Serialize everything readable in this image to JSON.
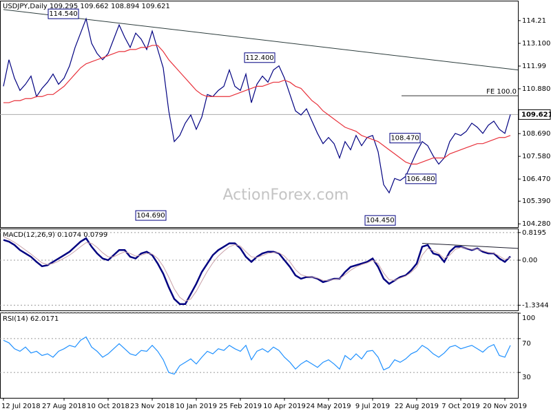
{
  "chart_data": [
    {
      "type": "line",
      "title": "USDJPY,Daily  109.295 109.662 108.894 109.621",
      "watermark": "ActionForex.com",
      "series": [
        {
          "color": "#000080",
          "values": [
            111.0,
            112.3,
            111.4,
            110.8,
            111.1,
            111.5,
            110.5,
            110.9,
            111.2,
            111.6,
            111.1,
            111.4,
            112.0,
            112.9,
            113.6,
            114.3,
            113.1,
            112.6,
            112.3,
            112.6,
            113.3,
            114.0,
            113.4,
            112.9,
            113.6,
            113.3,
            112.8,
            113.7,
            112.8,
            111.9,
            109.8,
            108.3,
            108.6,
            109.2,
            109.6,
            108.9,
            109.5,
            110.6,
            110.5,
            110.8,
            111.0,
            111.8,
            111.0,
            110.8,
            111.6,
            110.2,
            111.1,
            111.5,
            111.2,
            111.8,
            112.0,
            111.4,
            110.6,
            109.8,
            109.6,
            109.9,
            109.3,
            108.7,
            108.2,
            108.5,
            108.2,
            107.5,
            108.3,
            107.9,
            108.6,
            108.1,
            108.5,
            108.6,
            107.8,
            106.2,
            105.8,
            106.5,
            106.4,
            106.6,
            107.2,
            107.8,
            108.3,
            108.1,
            107.6,
            107.2,
            107.5,
            108.3,
            108.7,
            108.6,
            108.8,
            109.2,
            109.0,
            108.7,
            109.1,
            109.3,
            108.9,
            108.7,
            109.621
          ]
        },
        {
          "color": "#e8303a",
          "values": [
            110.2,
            110.2,
            110.3,
            110.3,
            110.4,
            110.4,
            110.5,
            110.5,
            110.6,
            110.6,
            110.8,
            111.0,
            111.3,
            111.6,
            111.9,
            112.1,
            112.2,
            112.3,
            112.4,
            112.5,
            112.6,
            112.7,
            112.7,
            112.8,
            112.8,
            112.9,
            112.9,
            113.0,
            113.0,
            112.7,
            112.3,
            112.0,
            111.7,
            111.4,
            111.1,
            110.8,
            110.6,
            110.5,
            110.5,
            110.5,
            110.5,
            110.5,
            110.6,
            110.7,
            110.8,
            110.9,
            111.0,
            111.0,
            111.1,
            111.2,
            111.2,
            111.3,
            111.2,
            111.0,
            110.9,
            110.6,
            110.3,
            110.1,
            109.8,
            109.6,
            109.4,
            109.2,
            109.0,
            108.9,
            108.8,
            108.6,
            108.5,
            108.4,
            108.3,
            108.1,
            107.9,
            107.7,
            107.5,
            107.3,
            107.2,
            107.2,
            107.3,
            107.4,
            107.5,
            107.5,
            107.5,
            107.7,
            107.8,
            107.9,
            108.0,
            108.1,
            108.2,
            108.2,
            108.3,
            108.4,
            108.5,
            108.5,
            108.6
          ]
        }
      ],
      "ylim": [
        104.12,
        115.15
      ],
      "yticks": [
        114.21,
        {
          "value": 113.1,
          "label": "113.100"
        },
        111.99,
        {
          "value": 110.88,
          "label": "110.880"
        },
        {
          "value": 108.69,
          "label": "108.690"
        },
        {
          "value": 107.58,
          "label": "107.580"
        },
        {
          "value": 106.47,
          "label": "106.470"
        },
        {
          "value": 105.39,
          "label": "105.390"
        },
        {
          "value": 104.28,
          "label": "104.280"
        }
      ],
      "last_price": 109.621,
      "trendline": [
        114.75,
        111.8
      ],
      "fe_level": {
        "value": 110.54,
        "label": "FE 100.0"
      },
      "annotations": [
        {
          "value": 114.54,
          "label": "114.540"
        },
        {
          "value": 112.4,
          "label": "112.400"
        },
        {
          "value": 104.69,
          "label": "104.690"
        },
        {
          "value": 108.47,
          "label": "108.470"
        },
        {
          "value": 106.48,
          "label": "106.480"
        },
        {
          "value": 104.45,
          "label": "104.450"
        }
      ]
    },
    {
      "type": "line",
      "title": "MACD(12,26,9) 0.1074 0.0799",
      "grid": true,
      "series": [
        {
          "color": "#000080",
          "values": [
            0.6,
            0.55,
            0.45,
            0.3,
            0.2,
            0.1,
            -0.05,
            -0.18,
            -0.15,
            -0.05,
            0.05,
            0.15,
            0.25,
            0.4,
            0.55,
            0.65,
            0.4,
            0.2,
            0.05,
            0.0,
            0.15,
            0.3,
            0.3,
            0.1,
            0.05,
            0.2,
            0.25,
            0.15,
            -0.1,
            -0.4,
            -0.8,
            -1.15,
            -1.3,
            -1.3,
            -1.0,
            -0.7,
            -0.35,
            -0.1,
            0.15,
            0.3,
            0.4,
            0.5,
            0.5,
            0.35,
            0.1,
            -0.05,
            0.1,
            0.2,
            0.25,
            0.25,
            0.2,
            0.0,
            -0.2,
            -0.45,
            -0.55,
            -0.5,
            -0.5,
            -0.55,
            -0.65,
            -0.6,
            -0.55,
            -0.55,
            -0.35,
            -0.2,
            -0.15,
            -0.1,
            -0.05,
            0.05,
            -0.2,
            -0.55,
            -0.7,
            -0.6,
            -0.5,
            -0.45,
            -0.3,
            -0.1,
            0.4,
            0.45,
            0.2,
            0.15,
            -0.05,
            0.25,
            0.4,
            0.4,
            0.35,
            0.3,
            0.35,
            0.25,
            0.2,
            0.2,
            0.05,
            -0.05,
            0.11
          ]
        },
        {
          "color": "#c8a0a8",
          "values": [
            0.7,
            0.62,
            0.53,
            0.42,
            0.3,
            0.18,
            0.05,
            -0.08,
            -0.13,
            -0.1,
            -0.03,
            0.06,
            0.15,
            0.27,
            0.4,
            0.52,
            0.5,
            0.38,
            0.22,
            0.1,
            0.1,
            0.18,
            0.25,
            0.2,
            0.12,
            0.15,
            0.2,
            0.18,
            0.05,
            -0.18,
            -0.5,
            -0.85,
            -1.1,
            -1.22,
            -1.15,
            -0.92,
            -0.62,
            -0.33,
            -0.08,
            0.12,
            0.27,
            0.4,
            0.46,
            0.42,
            0.25,
            0.1,
            0.08,
            0.14,
            0.2,
            0.23,
            0.22,
            0.12,
            -0.05,
            -0.28,
            -0.43,
            -0.48,
            -0.5,
            -0.53,
            -0.6,
            -0.6,
            -0.57,
            -0.55,
            -0.43,
            -0.3,
            -0.2,
            -0.13,
            -0.08,
            0.0,
            -0.1,
            -0.38,
            -0.58,
            -0.6,
            -0.53,
            -0.47,
            -0.36,
            -0.2,
            0.15,
            0.35,
            0.28,
            0.2,
            0.05,
            0.15,
            0.32,
            0.38,
            0.36,
            0.32,
            0.33,
            0.28,
            0.23,
            0.21,
            0.12,
            0.02,
            0.08
          ]
        }
      ],
      "ylim": [
        -1.49,
        0.918
      ],
      "yticks": [
        0.8195,
        {
          "value": 0,
          "label": "0.00"
        },
        -1.3344
      ],
      "trendline": [
        0.5,
        0.35
      ]
    },
    {
      "type": "line",
      "title": "RSI(14) 62.0171",
      "grid": true,
      "categories": [
        "12 Jul 2018",
        null,
        null,
        null,
        null,
        null,
        null,
        null,
        null,
        null,
        null,
        "27 Aug 2018",
        null,
        null,
        null,
        null,
        null,
        null,
        null,
        "10 Oct 2018",
        null,
        null,
        null,
        null,
        null,
        null,
        null,
        "23 Nov 2018",
        null,
        null,
        null,
        null,
        null,
        null,
        null,
        "10 Jan 2019",
        null,
        null,
        null,
        null,
        null,
        null,
        null,
        "25 Feb 2019",
        null,
        null,
        null,
        null,
        null,
        null,
        null,
        "10 Apr 2019",
        null,
        null,
        null,
        null,
        null,
        null,
        null,
        "24 May 2019",
        null,
        null,
        null,
        null,
        null,
        null,
        null,
        "9 Jul 2019",
        null,
        null,
        null,
        null,
        null,
        null,
        null,
        "22 Aug 2019",
        null,
        null,
        null,
        null,
        null,
        null,
        null,
        "7 Oct 2019",
        null,
        null,
        null,
        null,
        null,
        null,
        null,
        "20 Nov 2019",
        null
      ],
      "series": [
        {
          "color": "#1e90ff",
          "values": [
            68,
            65,
            58,
            55,
            60,
            53,
            55,
            50,
            52,
            48,
            55,
            58,
            62,
            60,
            68,
            72,
            60,
            55,
            48,
            52,
            58,
            64,
            58,
            52,
            50,
            56,
            55,
            62,
            55,
            45,
            30,
            28,
            38,
            42,
            46,
            40,
            48,
            55,
            52,
            58,
            56,
            62,
            58,
            55,
            62,
            45,
            55,
            58,
            54,
            60,
            56,
            48,
            42,
            34,
            40,
            44,
            40,
            36,
            42,
            45,
            40,
            34,
            50,
            45,
            52,
            46,
            55,
            56,
            48,
            33,
            36,
            45,
            42,
            46,
            52,
            55,
            62,
            58,
            52,
            48,
            53,
            60,
            62,
            58,
            60,
            62,
            58,
            54,
            60,
            63,
            50,
            48,
            62
          ]
        }
      ],
      "ylim": [
        0,
        100
      ],
      "yticks": [
        100,
        70,
        30
      ]
    }
  ]
}
